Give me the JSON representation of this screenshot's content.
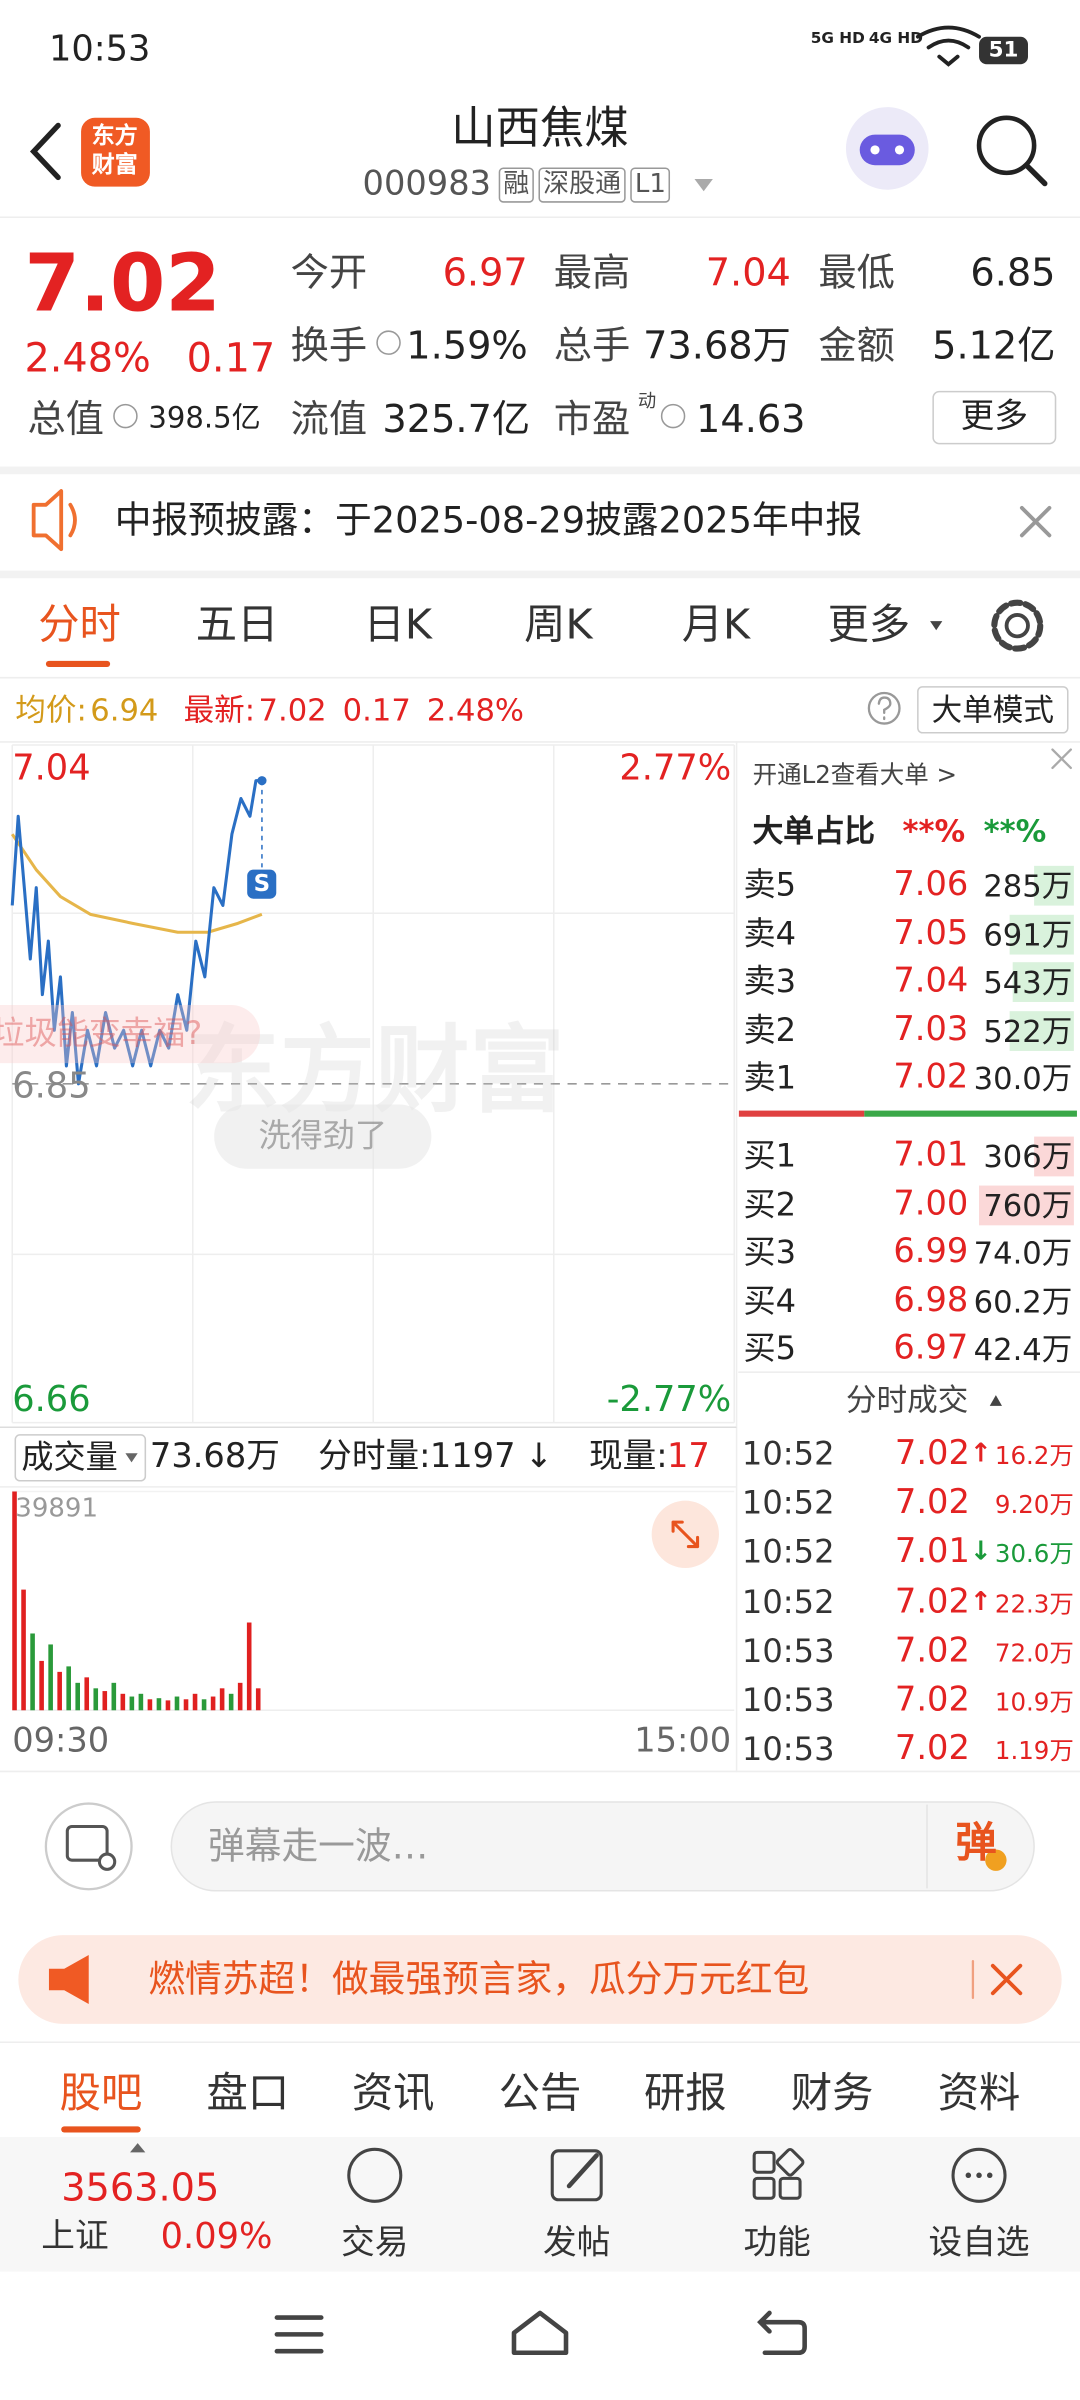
{
  "status_bar": {
    "time": "10:53",
    "net1": "5G HD",
    "net2": "4G HD",
    "battery": "51"
  },
  "header": {
    "logo": [
      "东方",
      "财富"
    ],
    "title": "山西焦煤",
    "code": "000983",
    "tags": [
      "融",
      "深股通",
      "L1"
    ]
  },
  "quote": {
    "price": "7.02",
    "change_pct": "2.48%",
    "change": "0.17",
    "fields": [
      {
        "label": "今开",
        "value": "6.97"
      },
      {
        "label": "最高",
        "value": "7.04"
      },
      {
        "label": "最低",
        "value": "6.85"
      },
      {
        "label": "换手",
        "value": "1.59%"
      },
      {
        "label": "总手",
        "value": "73.68万"
      },
      {
        "label": "金额",
        "value": "5.12亿"
      },
      {
        "label": "总值",
        "value": "398.5亿"
      },
      {
        "label": "流值",
        "value": "325.7亿"
      },
      {
        "label": "市盈",
        "sup": "动",
        "value": "14.63"
      }
    ],
    "more": "更多"
  },
  "notice": "中报预披露：于2025-08-29披露2025年中报",
  "tabs": [
    "分时",
    "五日",
    "日K",
    "周K",
    "月K",
    "更多"
  ],
  "info_bar": {
    "avg_label": "均价:",
    "avg": "6.94",
    "latest_label": "最新:",
    "latest": "7.02",
    "change": "0.17",
    "pct": "2.48%",
    "mode": "大单模式"
  },
  "intraday": {
    "ylim": [
      6.66,
      7.04
    ],
    "yticks": [
      6.66,
      6.85,
      7.04
    ],
    "right_labels": [
      "2.77%",
      "-2.77%"
    ],
    "xlim": [
      0,
      240
    ],
    "xlabels": [
      "09:30",
      "15:00"
    ],
    "price_color": "#2a6fc4",
    "avg_color": "#e6b64a",
    "marker": "S",
    "minutes": [
      0,
      2,
      4,
      6,
      8,
      10,
      12,
      14,
      16,
      18,
      20,
      22,
      25,
      28,
      31,
      34,
      37,
      40,
      43,
      46,
      49,
      52,
      55,
      58,
      61,
      64,
      67,
      70,
      73,
      76,
      79,
      81,
      83
    ],
    "price": [
      6.95,
      7.0,
      6.96,
      6.92,
      6.96,
      6.9,
      6.93,
      6.88,
      6.91,
      6.86,
      6.89,
      6.85,
      6.88,
      6.86,
      6.89,
      6.87,
      6.88,
      6.86,
      6.88,
      6.86,
      6.88,
      6.87,
      6.9,
      6.88,
      6.93,
      6.91,
      6.96,
      6.95,
      6.99,
      7.01,
      7.0,
      7.02,
      7.02
    ],
    "avg_minutes": [
      0,
      8,
      16,
      26,
      40,
      55,
      65,
      75,
      83
    ],
    "avg": [
      6.99,
      6.97,
      6.955,
      6.945,
      6.94,
      6.935,
      6.935,
      6.94,
      6.945
    ],
    "danmaku": [
      "垃圾能变幸福?",
      "洗得劲了"
    ],
    "watermark": "东方财富"
  },
  "volume": {
    "label": "成交量",
    "total": "73.68万",
    "minute_label": "分时量:",
    "minute": "1197",
    "minute_dir": "↓",
    "current_label": "现量:",
    "current": "17",
    "ylim": [
      0,
      39891
    ],
    "yticks": [
      39891
    ],
    "minutes": [
      0,
      3,
      6,
      9,
      12,
      15,
      18,
      21,
      24,
      27,
      30,
      33,
      36,
      39,
      42,
      45,
      48,
      51,
      54,
      57,
      60,
      63,
      66,
      69,
      72,
      75,
      78,
      81
    ],
    "values": [
      39891,
      22000,
      14000,
      9000,
      12000,
      7000,
      8000,
      5000,
      6000,
      4000,
      3500,
      5000,
      3000,
      2500,
      3000,
      2000,
      2200,
      1800,
      2500,
      2000,
      3000,
      2000,
      2500,
      4000,
      3000,
      5000,
      16000,
      4000
    ],
    "colors": [
      "#e02020",
      "#e02020",
      "#2a9a3a",
      "#e02020",
      "#2a9a3a",
      "#e02020",
      "#2a9a3a",
      "#2a9a3a",
      "#e02020",
      "#2a9a3a",
      "#e02020",
      "#2a9a3a",
      "#e02020",
      "#2a9a3a",
      "#2a9a3a",
      "#e02020",
      "#2a9a3a",
      "#e02020",
      "#2a9a3a",
      "#e02020",
      "#e02020",
      "#2a9a3a",
      "#e02020",
      "#e02020",
      "#2a9a3a",
      "#e02020",
      "#e02020",
      "#e02020"
    ]
  },
  "order_book": {
    "link": "开通L2查看大单 >",
    "ratio_label": "大单占比",
    "ratio_sell": "**%",
    "ratio_buy": "**%",
    "asks": [
      {
        "label": "卖5",
        "price": "7.06",
        "vol": "285万"
      },
      {
        "label": "卖4",
        "price": "7.05",
        "vol": "691万"
      },
      {
        "label": "卖3",
        "price": "7.04",
        "vol": "543万"
      },
      {
        "label": "卖2",
        "price": "7.03",
        "vol": "522万"
      },
      {
        "label": "卖1",
        "price": "7.02",
        "vol": "30.0万"
      }
    ],
    "bids": [
      {
        "label": "买1",
        "price": "7.01",
        "vol": "306万"
      },
      {
        "label": "买2",
        "price": "7.00",
        "vol": "760万"
      },
      {
        "label": "买3",
        "price": "6.99",
        "vol": "74.0万"
      },
      {
        "label": "买4",
        "price": "6.98",
        "vol": "60.2万"
      },
      {
        "label": "买5",
        "price": "6.97",
        "vol": "42.4万"
      }
    ]
  },
  "trades": {
    "title": "分时成交",
    "rows": [
      {
        "time": "10:52",
        "price": "7.02",
        "dir": "↑",
        "vol": "16.2万"
      },
      {
        "time": "10:52",
        "price": "7.02",
        "vol": "9.20万"
      },
      {
        "time": "10:52",
        "price": "7.01",
        "dir": "↓",
        "vol": "30.6万"
      },
      {
        "time": "10:52",
        "price": "7.02",
        "dir": "↑",
        "vol": "22.3万"
      },
      {
        "time": "10:53",
        "price": "7.02",
        "vol": "72.0万"
      },
      {
        "time": "10:53",
        "price": "7.02",
        "vol": "10.9万"
      },
      {
        "time": "10:53",
        "price": "7.02",
        "vol": "1.19万"
      }
    ]
  },
  "comment": {
    "placeholder": "弹幕走一波…",
    "button": "弹"
  },
  "banner": "燃情苏超！做最强预言家，瓜分万元红包",
  "bottom_tabs": [
    "股吧",
    "盘口",
    "资讯",
    "公告",
    "研报",
    "财务",
    "资料"
  ],
  "bottom_nav": {
    "index_value": "3563.05",
    "index_name": "上证",
    "index_pct": "0.09%",
    "items": [
      "交易",
      "发帖",
      "功能",
      "设自选"
    ]
  }
}
